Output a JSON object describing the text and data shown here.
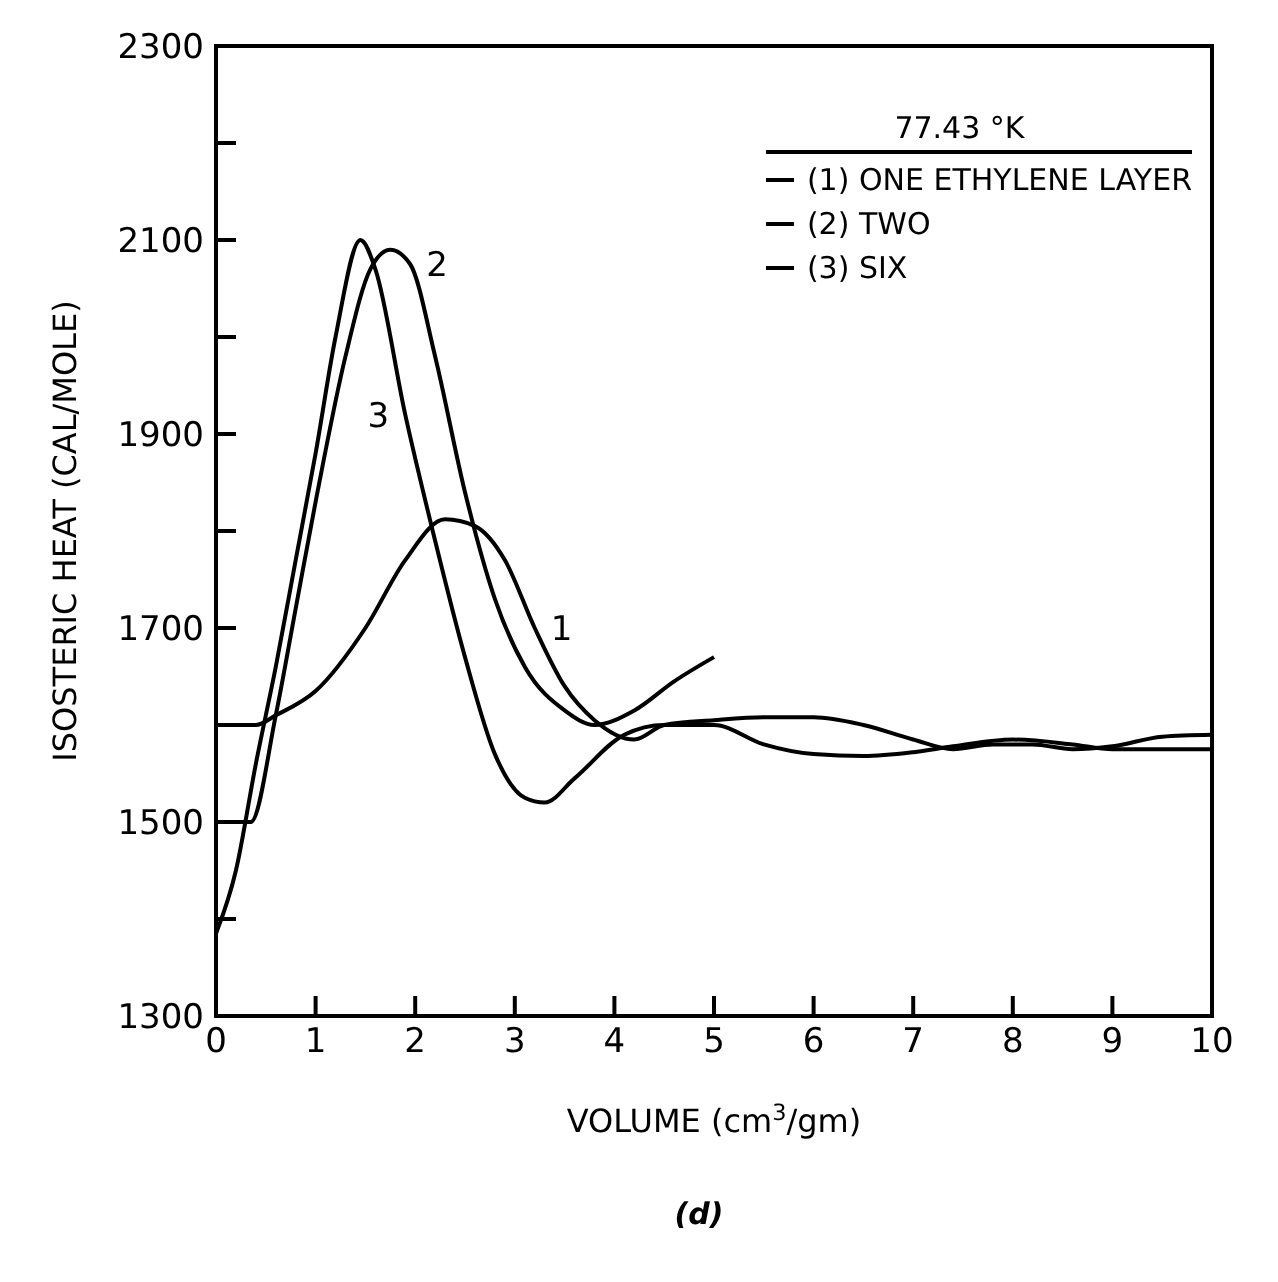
{
  "chart_data": {
    "type": "line",
    "xlabel": "VOLUME (cm$^{3}$/gm)",
    "ylabel": "ISOSTERIC HEAT (CAL/MOLE)",
    "legend_title": "77.43 °K",
    "legend": "top right",
    "grid": false,
    "marker": "none",
    "line_style": "solid",
    "xlim": [
      0,
      10
    ],
    "xticks": [
      0,
      1,
      2,
      3,
      4,
      5,
      6,
      7,
      8,
      9,
      10
    ],
    "ylim": [
      1300,
      2300
    ],
    "yticks": [
      1300,
      {
        "value": 1400,
        "label": null
      },
      1500,
      {
        "value": 1600,
        "label": null
      },
      1700,
      {
        "value": 1800,
        "label": null
      },
      1900,
      {
        "value": 2000,
        "label": null
      },
      2100,
      {
        "value": 2200,
        "label": null
      },
      2300
    ],
    "series": [
      {
        "name": "(1) ONE ETHYLENE LAYER",
        "color": "#000000",
        "x": [
          0,
          0.4,
          0.6,
          1.0,
          1.5,
          1.9,
          2.3,
          2.6,
          2.9,
          3.2,
          3.5,
          3.8,
          4.2,
          4.5,
          5,
          5.5,
          6,
          6.5,
          7,
          7.4,
          7.8,
          8.2,
          8.6,
          9,
          9.5,
          10
        ],
        "values": [
          1600,
          1600,
          1610,
          1635,
          1700,
          1770,
          1812,
          1805,
          1770,
          1700,
          1640,
          1605,
          1585,
          1600,
          1605,
          1608,
          1608,
          1600,
          1585,
          1575,
          1580,
          1580,
          1575,
          1578,
          1588,
          1590
        ]
      },
      {
        "name": "(2) TWO",
        "color": "#000000",
        "x": [
          0,
          0.35,
          0.6,
          0.8,
          1.0,
          1.3,
          1.55,
          1.75,
          1.95,
          2.2,
          2.5,
          2.8,
          3.1,
          3.5,
          3.8,
          4.2,
          4.6,
          5
        ],
        "values": [
          1500,
          1500,
          1610,
          1720,
          1830,
          1980,
          2070,
          2090,
          2075,
          1980,
          1840,
          1730,
          1660,
          1615,
          1600,
          1615,
          1645,
          1670
        ]
      },
      {
        "name": "(3) SIX",
        "color": "#000000",
        "x": [
          0,
          0.2,
          0.4,
          0.6,
          0.8,
          1.0,
          1.2,
          1.45,
          1.6,
          1.9,
          2.2,
          2.5,
          2.8,
          3.1,
          3.3,
          3.6,
          4.1,
          4.5,
          5,
          5.5,
          6,
          6.5,
          7,
          7.4,
          8,
          8.6,
          9,
          9.5,
          10
        ],
        "values": [
          1385,
          1450,
          1560,
          1660,
          1770,
          1880,
          2000,
          2100,
          2070,
          1920,
          1790,
          1670,
          1570,
          1525,
          1520,
          1545,
          1590,
          1600,
          1600,
          1580,
          1570,
          1568,
          1572,
          1578,
          1585,
          1580,
          1575,
          1575,
          1575
        ]
      }
    ],
    "annotations": [
      {
        "text": "1",
        "x": 3.2,
        "y": 1700
      },
      {
        "text": "2",
        "x": 1.95,
        "y": 2075
      },
      {
        "text": "3",
        "x": 1.9,
        "y": 1920
      },
      "(d)"
    ]
  }
}
